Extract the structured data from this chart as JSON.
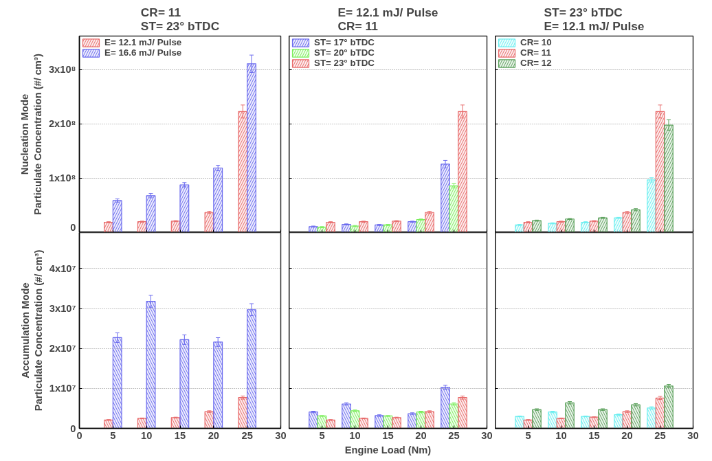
{
  "chart_data": [
    {
      "type": "bar",
      "title": "CR= 11\nST= 23° bTDC",
      "ylabel": "Nucleation Mode\nParticulate Concentration (#/ cm³)",
      "x": [
        5,
        10,
        15,
        20,
        25
      ],
      "xlim": [
        0,
        30
      ],
      "xticks": [
        0,
        5,
        10,
        15,
        20,
        25,
        30
      ],
      "ylim": [
        0,
        362000000
      ],
      "yticks": [
        0,
        {
          "value": 100000000,
          "label": "1x10⁸"
        },
        {
          "value": 200000000,
          "label": "2x10⁸"
        },
        {
          "value": 300000000,
          "label": "3x10⁸"
        }
      ],
      "grid": "y",
      "legend": "top left",
      "tick_labels": "y",
      "series": [
        {
          "name": "E= 12.1 mJ/ Pulse",
          "color": "#e86a6a",
          "values": [
            19000000,
            20000000,
            21000000,
            37000000,
            223000000
          ],
          "errors": [
            1000000,
            1000000,
            1000000,
            2000000,
            12000000
          ]
        },
        {
          "name": "E= 16.6 mJ/ Pulse",
          "color": "#6a6aee",
          "values": [
            59000000,
            68000000,
            88000000,
            119000000,
            311000000
          ],
          "errors": [
            3000000,
            4000000,
            4000000,
            5000000,
            16000000
          ]
        }
      ]
    },
    {
      "type": "bar",
      "title": "E= 12.1 mJ/ Pulse\nCR= 11",
      "x": [
        5,
        10,
        15,
        20,
        25
      ],
      "xlim": [
        0,
        30
      ],
      "xticks": [
        0,
        5,
        10,
        15,
        20,
        25,
        30
      ],
      "ylim": [
        0,
        362000000
      ],
      "yticks": [
        0,
        100000000,
        200000000,
        300000000
      ],
      "grid": "y",
      "legend": "top left",
      "tick_labels": false,
      "series": [
        {
          "name": "ST= 17° bTDC",
          "color": "#6a6aee",
          "values": [
            11000000,
            15000000,
            14000000,
            20000000,
            126000000
          ],
          "errors": [
            1000000,
            1000000,
            1000000,
            1000000,
            7000000
          ]
        },
        {
          "name": "ST= 20° bTDC",
          "color": "#7aee5a",
          "values": [
            10000000,
            12000000,
            14000000,
            24000000,
            86000000
          ],
          "errors": [
            1000000,
            1000000,
            1000000,
            1000000,
            4000000
          ]
        },
        {
          "name": "ST= 23° bTDC",
          "color": "#e86a6a",
          "values": [
            19000000,
            20000000,
            21000000,
            37000000,
            223000000
          ],
          "errors": [
            1000000,
            1000000,
            1000000,
            2000000,
            12000000
          ]
        }
      ]
    },
    {
      "type": "bar",
      "title": "ST= 23° bTDC\nE= 12.1 mJ/ Pulse",
      "x": [
        5,
        10,
        15,
        20,
        25
      ],
      "xlim": [
        0,
        30
      ],
      "xticks": [
        0,
        5,
        10,
        15,
        20,
        25,
        30
      ],
      "ylim": [
        0,
        362000000
      ],
      "yticks": [
        0,
        100000000,
        200000000,
        300000000
      ],
      "grid": "y",
      "legend": "top left",
      "tick_labels": false,
      "series": [
        {
          "name": "CR= 10",
          "color": "#6aeef0",
          "values": [
            14000000,
            17000000,
            19000000,
            27000000,
            97000000
          ],
          "errors": [
            1000000,
            1000000,
            1000000,
            1000000,
            4000000
          ]
        },
        {
          "name": "CR= 11",
          "color": "#e86a6a",
          "values": [
            19000000,
            20000000,
            21000000,
            37000000,
            223000000
          ],
          "errors": [
            1000000,
            1000000,
            1000000,
            2000000,
            12000000
          ]
        },
        {
          "name": "CR= 12",
          "color": "#5aa05a",
          "values": [
            22000000,
            25000000,
            27000000,
            42000000,
            198000000
          ],
          "errors": [
            1000000,
            1000000,
            1000000,
            2000000,
            10000000
          ]
        }
      ]
    },
    {
      "type": "bar",
      "ylabel": "Accumulation Mode\nParticulate Concentration (#/ cm³)",
      "x": [
        5,
        10,
        15,
        20,
        25
      ],
      "xlim": [
        0,
        30
      ],
      "xticks": [
        0,
        5,
        10,
        15,
        20,
        25,
        30
      ],
      "ylim": [
        0,
        49000000
      ],
      "yticks": [
        0,
        {
          "value": 10000000,
          "label": "1x10⁷"
        },
        {
          "value": 20000000,
          "label": "2x10⁷"
        },
        {
          "value": 30000000,
          "label": "3x10⁷"
        },
        {
          "value": 40000000,
          "label": "4x10⁷"
        }
      ],
      "grid": "y",
      "series": [
        {
          "color": "#e86a6a",
          "values": [
            2100000,
            2500000,
            2700000,
            4200000,
            7700000
          ],
          "errors": [
            100000,
            100000,
            100000,
            200000,
            400000
          ]
        },
        {
          "color": "#6a6aee",
          "values": [
            22700000,
            31800000,
            22200000,
            21600000,
            29700000
          ],
          "errors": [
            1200000,
            1500000,
            1200000,
            1100000,
            1500000
          ]
        }
      ]
    },
    {
      "type": "bar",
      "xlabel": "Engine Load (Nm)",
      "x": [
        5,
        10,
        15,
        20,
        25
      ],
      "xlim": [
        0,
        30
      ],
      "xticks": [
        5,
        10,
        15,
        20,
        25,
        30
      ],
      "ylim": [
        0,
        49000000
      ],
      "yticks": [
        0,
        10000000,
        20000000,
        30000000,
        40000000
      ],
      "grid": "y",
      "tick_labels": "x",
      "series": [
        {
          "color": "#6a6aee",
          "values": [
            4100000,
            6100000,
            3200000,
            3700000,
            10300000
          ],
          "errors": [
            200000,
            300000,
            200000,
            200000,
            500000
          ]
        },
        {
          "color": "#7aee5a",
          "values": [
            3100000,
            4400000,
            3100000,
            4100000,
            6100000
          ],
          "errors": [
            100000,
            200000,
            100000,
            200000,
            300000
          ]
        },
        {
          "color": "#e86a6a",
          "values": [
            2100000,
            2500000,
            2700000,
            4200000,
            7700000
          ],
          "errors": [
            100000,
            100000,
            100000,
            200000,
            400000
          ]
        }
      ]
    },
    {
      "type": "bar",
      "x": [
        5,
        10,
        15,
        20,
        25
      ],
      "xlim": [
        0,
        30
      ],
      "xticks": [
        5,
        10,
        15,
        20,
        25,
        30
      ],
      "ylim": [
        0,
        49000000
      ],
      "yticks": [
        0,
        10000000,
        20000000,
        30000000,
        40000000
      ],
      "grid": "y",
      "tick_labels": "x",
      "series": [
        {
          "color": "#6aeef0",
          "values": [
            3000000,
            4100000,
            3000000,
            3400000,
            5100000
          ],
          "errors": [
            100000,
            200000,
            100000,
            200000,
            300000
          ]
        },
        {
          "color": "#e86a6a",
          "values": [
            2100000,
            2500000,
            2800000,
            4200000,
            7600000
          ],
          "errors": [
            100000,
            100000,
            100000,
            200000,
            400000
          ]
        },
        {
          "color": "#5aa05a",
          "values": [
            4700000,
            6400000,
            4700000,
            5900000,
            10600000
          ],
          "errors": [
            200000,
            300000,
            200000,
            300000,
            400000
          ]
        }
      ]
    }
  ]
}
